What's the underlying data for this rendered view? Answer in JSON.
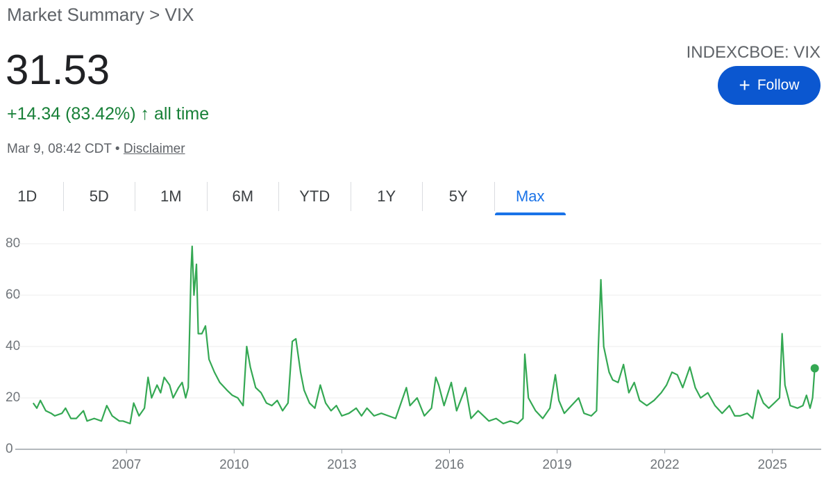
{
  "header": {
    "breadcrumb": "Market Summary > VIX",
    "price": "31.53",
    "change": "+14.34 (83.42%)",
    "period": "all time",
    "timestamp": "Mar 9, 08:42 CDT •",
    "disclaimer": "Disclaimer",
    "ticker": "INDEXCBOE: VIX",
    "follow": "Follow"
  },
  "tabs": [
    "1D",
    "5D",
    "1M",
    "6M",
    "YTD",
    "1Y",
    "5Y",
    "Max"
  ],
  "selected_tab": 7,
  "chart_data": {
    "type": "line",
    "color": "#34a853",
    "x": [
      2004.4,
      2004.5,
      2004.6,
      2004.75,
      2004.9,
      2005.0,
      2005.2,
      2005.3,
      2005.45,
      2005.6,
      2005.8,
      2005.9,
      2006.1,
      2006.3,
      2006.45,
      2006.6,
      2006.8,
      2006.9,
      2007.1,
      2007.2,
      2007.35,
      2007.5,
      2007.6,
      2007.7,
      2007.85,
      2007.95,
      2008.05,
      2008.2,
      2008.3,
      2008.45,
      2008.55,
      2008.65,
      2008.72,
      2008.8,
      2008.83,
      2008.88,
      2008.95,
      2009.0,
      2009.1,
      2009.2,
      2009.3,
      2009.45,
      2009.6,
      2009.8,
      2009.95,
      2010.1,
      2010.25,
      2010.35,
      2010.45,
      2010.6,
      2010.75,
      2010.9,
      2011.05,
      2011.2,
      2011.35,
      2011.5,
      2011.62,
      2011.72,
      2011.85,
      2011.95,
      2012.1,
      2012.25,
      2012.4,
      2012.55,
      2012.7,
      2012.85,
      2013.0,
      2013.2,
      2013.4,
      2013.55,
      2013.7,
      2013.9,
      2014.1,
      2014.3,
      2014.5,
      2014.8,
      2014.9,
      2015.1,
      2015.3,
      2015.5,
      2015.62,
      2015.7,
      2015.85,
      2016.05,
      2016.2,
      2016.45,
      2016.6,
      2016.8,
      2016.95,
      2017.1,
      2017.3,
      2017.5,
      2017.7,
      2017.9,
      2018.05,
      2018.1,
      2018.2,
      2018.4,
      2018.6,
      2018.8,
      2018.95,
      2019.05,
      2019.2,
      2019.4,
      2019.6,
      2019.75,
      2019.95,
      2020.1,
      2020.15,
      2020.22,
      2020.3,
      2020.45,
      2020.55,
      2020.7,
      2020.85,
      2021.0,
      2021.15,
      2021.3,
      2021.5,
      2021.7,
      2021.9,
      2022.05,
      2022.2,
      2022.35,
      2022.5,
      2022.7,
      2022.85,
      2023.0,
      2023.2,
      2023.4,
      2023.6,
      2023.8,
      2023.95,
      2024.1,
      2024.3,
      2024.45,
      2024.6,
      2024.75,
      2024.9,
      2025.05,
      2025.2,
      2025.27,
      2025.35,
      2025.5,
      2025.7,
      2025.85,
      2025.95,
      2026.05,
      2026.12,
      2026.18
    ],
    "values": [
      18,
      16,
      19,
      15,
      14,
      13,
      14,
      16,
      12,
      12,
      15,
      11,
      12,
      11,
      17,
      13,
      11,
      11,
      10,
      18,
      13,
      16,
      28,
      20,
      25,
      22,
      28,
      25,
      20,
      24,
      26,
      20,
      24,
      70,
      79,
      60,
      72,
      45,
      45,
      48,
      35,
      30,
      26,
      23,
      21,
      20,
      17,
      40,
      32,
      24,
      22,
      18,
      17,
      19,
      15,
      18,
      42,
      43,
      30,
      23,
      18,
      16,
      25,
      18,
      15,
      17,
      13,
      14,
      16,
      13,
      16,
      13,
      14,
      13,
      12,
      24,
      17,
      20,
      13,
      16,
      28,
      25,
      17,
      26,
      15,
      24,
      12,
      15,
      13,
      11,
      12,
      10,
      11,
      10,
      12,
      37,
      20,
      15,
      12,
      16,
      29,
      19,
      14,
      17,
      20,
      14,
      13,
      15,
      40,
      66,
      40,
      30,
      27,
      26,
      33,
      22,
      26,
      19,
      17,
      19,
      22,
      25,
      30,
      29,
      24,
      32,
      24,
      20,
      22,
      17,
      14,
      17,
      13,
      13,
      14,
      12,
      23,
      18,
      16,
      18,
      20,
      45,
      25,
      17,
      16,
      17,
      21,
      16,
      20,
      31.53
    ],
    "xlim": [
      2003.9,
      2026.36
    ],
    "ylim": [
      0,
      80
    ],
    "xticks": [
      2007,
      2010,
      2013,
      2016,
      2019,
      2022,
      2025
    ],
    "yticks": [
      0,
      20,
      40,
      60,
      80
    ],
    "grid": true
  }
}
